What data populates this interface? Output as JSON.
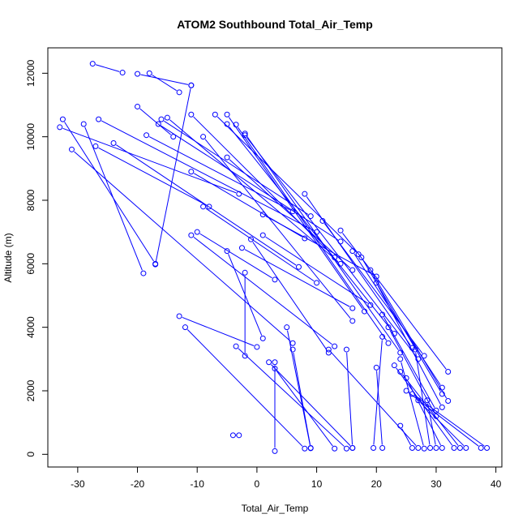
{
  "chart_data": {
    "type": "line",
    "title": "ATOM2 Southbound Total_Air_Temp",
    "xlabel": "Total_Air_Temp",
    "ylabel": "Altitude (m)",
    "xlim": [
      -35,
      41
    ],
    "ylim": [
      -400,
      12800
    ],
    "xticks": [
      "-30",
      "-20",
      "-10",
      "0",
      "10",
      "20",
      "30",
      "40"
    ],
    "yticks": [
      "0",
      "2000",
      "4000",
      "6000",
      "8000",
      "10000",
      "12000"
    ],
    "grid": false,
    "line_color": "#0000ff",
    "marker": "open-circle",
    "series": [
      {
        "points": [
          [
            -27.5,
            12300
          ],
          [
            -22.5,
            12020
          ],
          [
            -20,
            11980
          ],
          [
            -11,
            11620
          ],
          [
            -18,
            12000
          ],
          [
            -13,
            11400
          ],
          [
            -11,
            11620
          ],
          [
            -17,
            5980
          ],
          [
            -20,
            10950
          ],
          [
            -14,
            10000
          ],
          [
            -15,
            10600
          ],
          [
            14,
            6000
          ],
          [
            -16,
            10550
          ],
          [
            9,
            7500
          ],
          [
            -11,
            10700
          ],
          [
            13,
            6200
          ],
          [
            -7,
            10700
          ],
          [
            17,
            6300
          ],
          [
            -5,
            10700
          ],
          [
            18,
            4500
          ],
          [
            -3.5,
            10380
          ],
          [
            22,
            3500
          ],
          [
            -2,
            10100
          ],
          [
            24,
            3200
          ],
          [
            -2,
            10050
          ],
          [
            27,
            3000
          ],
          [
            -5,
            10400
          ],
          [
            23,
            3800
          ],
          [
            -9,
            10000
          ],
          [
            16,
            4200
          ],
          [
            -32.5,
            10550
          ],
          [
            -17,
            6000
          ],
          [
            -29,
            10400
          ],
          [
            -19,
            5700
          ],
          [
            -26.5,
            10550
          ],
          [
            10,
            7000
          ],
          [
            -24,
            9800
          ],
          [
            7,
            5900
          ],
          [
            -18.5,
            10050
          ],
          [
            6,
            7650
          ],
          [
            -16.5,
            10400
          ],
          [
            14,
            6700
          ],
          [
            -33,
            10300
          ],
          [
            -3,
            8200
          ],
          [
            -31,
            9600
          ],
          [
            6,
            3500
          ],
          [
            -27,
            9700
          ],
          [
            -8,
            7800
          ],
          [
            -5,
            9350
          ],
          [
            16,
            5800
          ],
          [
            -11,
            8900
          ],
          [
            8,
            6800
          ],
          [
            -10,
            7000
          ],
          [
            3,
            5500
          ],
          [
            -9,
            7800
          ],
          [
            10,
            5400
          ],
          [
            -11,
            6900
          ],
          [
            13,
            3400
          ],
          [
            -1,
            6770
          ],
          [
            12,
            3200
          ],
          [
            1,
            7550
          ],
          [
            20,
            5600
          ],
          [
            1,
            6900
          ],
          [
            19,
            4700
          ],
          [
            -2.5,
            6500
          ],
          [
            16,
            4600
          ],
          [
            -5,
            6400
          ],
          [
            1,
            3650
          ],
          [
            -2,
            5720
          ],
          [
            -2,
            3100
          ],
          [
            -13,
            4350
          ],
          [
            0,
            3380
          ],
          [
            -12,
            4000
          ],
          [
            8,
            180
          ],
          [
            -3.5,
            3400
          ],
          [
            15,
            180
          ],
          [
            -4,
            600
          ],
          [
            -3,
            600
          ],
          [
            3,
            2900
          ],
          [
            3,
            100
          ],
          [
            3,
            2700
          ],
          [
            13,
            180
          ],
          [
            2,
            2900
          ],
          [
            16,
            200
          ],
          [
            6,
            3300
          ],
          [
            9,
            200
          ],
          [
            5,
            4000
          ],
          [
            9,
            190
          ],
          [
            8,
            8200
          ],
          [
            26,
            3350
          ],
          [
            11,
            7350
          ],
          [
            28,
            3100
          ],
          [
            14,
            7050
          ],
          [
            32,
            2600
          ],
          [
            16,
            6400
          ],
          [
            31,
            2100
          ],
          [
            17.5,
            6200
          ],
          [
            31,
            1900
          ],
          [
            19,
            5800
          ],
          [
            32,
            1680
          ],
          [
            20,
            5400
          ],
          [
            31,
            1480
          ],
          [
            21,
            4400
          ],
          [
            30,
            1380
          ],
          [
            22,
            4000
          ],
          [
            30,
            1200
          ],
          [
            23,
            2800
          ],
          [
            33,
            200
          ],
          [
            24,
            2600
          ],
          [
            34,
            200
          ],
          [
            25,
            2000
          ],
          [
            37.5,
            200
          ],
          [
            26,
            1900
          ],
          [
            38.5,
            200
          ],
          [
            27,
            1700
          ],
          [
            35,
            200
          ],
          [
            20,
            2730
          ],
          [
            21,
            200
          ],
          [
            24,
            900
          ],
          [
            26,
            200
          ],
          [
            26.5,
            3300
          ],
          [
            29,
            200
          ],
          [
            28.5,
            1700
          ],
          [
            30,
            200
          ],
          [
            24,
            3000
          ],
          [
            28,
            180
          ],
          [
            25,
            2400
          ],
          [
            31,
            200
          ],
          [
            21,
            3700
          ],
          [
            19.5,
            200
          ],
          [
            15,
            3300
          ],
          [
            16,
            200
          ],
          [
            12,
            3300
          ],
          [
            27,
            200
          ]
        ]
      }
    ]
  }
}
